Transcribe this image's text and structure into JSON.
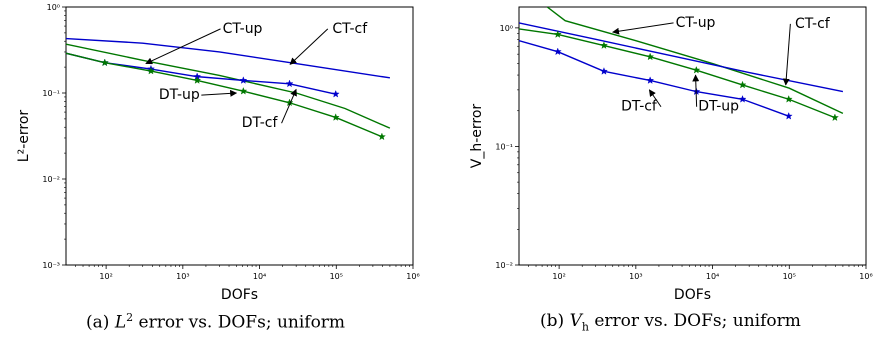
{
  "chart_data": [
    {
      "type": "line",
      "caption": {
        "prefix": "(a) ",
        "symbol": "L",
        "superscript": "2",
        "rest": " error vs. DOFs; uniform"
      },
      "xlabel": "DOFs",
      "ylabel": "L²-error",
      "xscale": "log",
      "yscale": "log",
      "xlim": [
        30,
        1000000
      ],
      "ylim": [
        0.001,
        1
      ],
      "xticks": [
        {
          "value": 100,
          "label": "10²"
        },
        {
          "value": 1000,
          "label": "10³"
        },
        {
          "value": 10000,
          "label": "10⁴"
        },
        {
          "value": 100000,
          "label": "10⁵"
        },
        {
          "value": 1000000,
          "label": "10⁶"
        }
      ],
      "yticks": [
        {
          "value": 0.001,
          "label": "10⁻³"
        },
        {
          "value": 0.01,
          "label": "10⁻²"
        },
        {
          "value": 0.1,
          "label": "10⁻¹"
        },
        {
          "value": 1,
          "label": "10⁰"
        }
      ],
      "grid": false,
      "series": [
        {
          "id": "CT-cf",
          "color": "#0000cc",
          "marker": "none",
          "x": [
            30,
            300,
            3000,
            30000,
            500000
          ],
          "y": [
            0.43,
            0.38,
            0.3,
            0.22,
            0.15
          ]
        },
        {
          "id": "CT-up",
          "color": "#007700",
          "marker": "none",
          "x": [
            30,
            300,
            3000,
            30000,
            130000,
            500000
          ],
          "y": [
            0.37,
            0.24,
            0.16,
            0.1,
            0.066,
            0.039
          ]
        },
        {
          "id": "DT-up",
          "color": "#0000cc",
          "marker": "star",
          "x": [
            30,
            96,
            384,
            1536,
            6144,
            24576,
            98304
          ],
          "y": [
            0.29,
            0.225,
            0.19,
            0.155,
            0.14,
            0.128,
            0.097
          ]
        },
        {
          "id": "DT-cf",
          "color": "#007700",
          "marker": "star",
          "x": [
            30,
            96,
            384,
            1536,
            6144,
            24576,
            98304,
            393216
          ],
          "y": [
            0.29,
            0.225,
            0.18,
            0.14,
            0.105,
            0.077,
            0.052,
            0.031
          ]
        }
      ],
      "annotations": [
        {
          "text": "CT-up",
          "text_x": 6000,
          "text_y": 0.5,
          "arrow_x": 330,
          "arrow_y": 0.22
        },
        {
          "text": "CT-cf",
          "text_x": 150000,
          "text_y": 0.5,
          "arrow_x": 25000,
          "arrow_y": 0.215
        },
        {
          "text": "DT-up",
          "text_x": 900,
          "text_y": 0.085,
          "arrow_x": 5000,
          "arrow_y": 0.1
        },
        {
          "text": "DT-cf",
          "text_x": 10000,
          "text_y": 0.04,
          "arrow_x": 30000,
          "arrow_y": 0.11
        }
      ]
    },
    {
      "type": "line",
      "caption": {
        "prefix": "(b) ",
        "symbol": "V",
        "subscript": "h",
        "rest": " error vs. DOFs; uniform"
      },
      "xlabel": "DOFs",
      "ylabel": "V_h-error",
      "xscale": "log",
      "yscale": "log",
      "xlim": [
        30,
        1000000
      ],
      "ylim": [
        0.01,
        1.5
      ],
      "xticks": [
        {
          "value": 100,
          "label": "10²"
        },
        {
          "value": 1000,
          "label": "10³"
        },
        {
          "value": 10000,
          "label": "10⁴"
        },
        {
          "value": 100000,
          "label": "10⁵"
        },
        {
          "value": 1000000,
          "label": "10⁶"
        }
      ],
      "yticks": [
        {
          "value": 0.01,
          "label": "10⁻²"
        },
        {
          "value": 0.1,
          "label": "10⁻¹"
        },
        {
          "value": 1,
          "label": "10⁰"
        }
      ],
      "grid": false,
      "series": [
        {
          "id": "CT-up",
          "color": "#007700",
          "marker": "none",
          "x": [
            70,
            120,
            1000,
            10000,
            100000,
            500000
          ],
          "y": [
            1.5,
            1.15,
            0.78,
            0.5,
            0.31,
            0.19
          ]
        },
        {
          "id": "CT-cf",
          "color": "#0000cc",
          "marker": "none",
          "x": [
            30,
            300,
            3000,
            30000,
            500000
          ],
          "y": [
            1.1,
            0.8,
            0.58,
            0.42,
            0.29
          ]
        },
        {
          "id": "DT-up",
          "color": "#007700",
          "marker": "star",
          "x": [
            30,
            96,
            384,
            1536,
            6144,
            24576,
            98304,
            393216
          ],
          "y": [
            0.98,
            0.88,
            0.71,
            0.57,
            0.44,
            0.33,
            0.25,
            0.175
          ]
        },
        {
          "id": "DT-cf",
          "color": "#0000cc",
          "marker": "star",
          "x": [
            30,
            96,
            384,
            1536,
            6144,
            24576,
            98304
          ],
          "y": [
            0.78,
            0.63,
            0.43,
            0.36,
            0.29,
            0.25,
            0.18
          ]
        }
      ],
      "annotations": [
        {
          "text": "CT-up",
          "text_x": 6000,
          "text_y": 1.02,
          "arrow_x": 500,
          "arrow_y": 0.92
        },
        {
          "text": "CT-cf",
          "text_x": 200000,
          "text_y": 1.0,
          "arrow_x": 90000,
          "arrow_y": 0.33
        },
        {
          "text": "DT-cf",
          "text_x": 1100,
          "text_y": 0.2,
          "arrow_x": 1500,
          "arrow_y": 0.3
        },
        {
          "text": "DT-up",
          "text_x": 12000,
          "text_y": 0.2,
          "arrow_x": 6000,
          "arrow_y": 0.4
        }
      ]
    }
  ]
}
